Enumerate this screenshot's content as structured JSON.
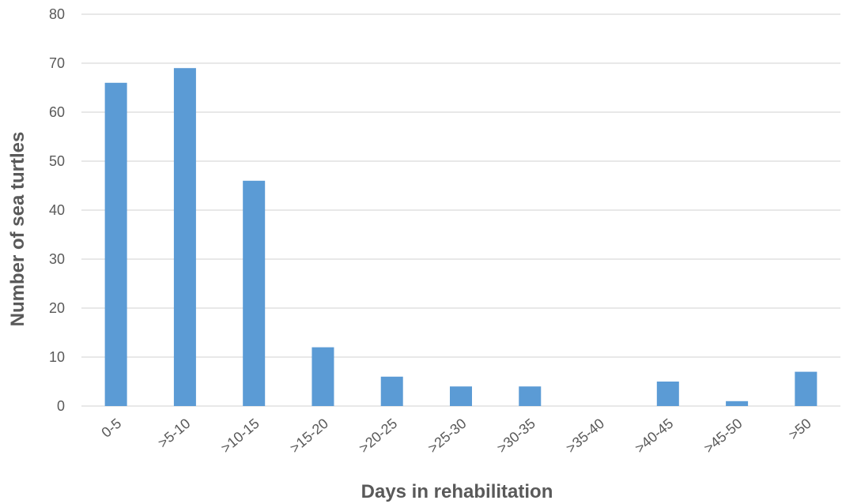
{
  "chart_data": {
    "type": "bar",
    "title": "",
    "xlabel": "Days in rehabilitation",
    "ylabel": "Number of sea turtles",
    "categories": [
      "0-5",
      ">5-10",
      ">10-15",
      ">15-20",
      ">20-25",
      ">25-30",
      ">30-35",
      ">35-40",
      ">40-45",
      ">45-50",
      ">50"
    ],
    "values": [
      66,
      69,
      46,
      12,
      6,
      4,
      4,
      0,
      5,
      1,
      7
    ],
    "ylim": [
      0,
      80
    ],
    "yticks": [
      0,
      10,
      20,
      30,
      40,
      50,
      60,
      70,
      80
    ],
    "grid": true,
    "legend": "none",
    "bar_color": "#5b9bd5",
    "grid_color": "#d9d9d9",
    "text_color": "#595959"
  }
}
